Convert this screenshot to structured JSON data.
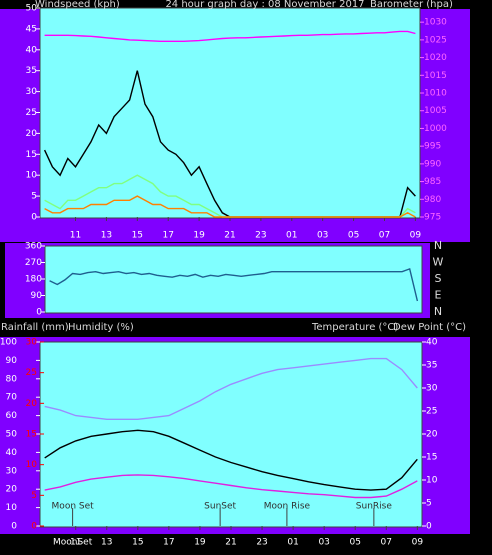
{
  "chart_data": [
    {
      "type": "line",
      "title": "24 hour graph day : 08 November 2017",
      "y_label": "Windspeed (kph)",
      "y2_label": "Barometer (hpa)",
      "x": [
        9,
        9.5,
        10,
        10.5,
        11,
        11.5,
        12,
        12.5,
        13,
        13.5,
        14,
        14.5,
        15,
        15.5,
        16,
        16.5,
        17,
        17.5,
        18,
        18.5,
        19,
        19.5,
        20,
        20.5,
        21,
        21.5,
        22,
        22.5,
        23,
        23.5,
        24,
        24.5,
        25,
        25.5,
        26,
        26.5,
        27,
        27.5,
        28,
        28.5,
        29,
        29.5,
        30,
        30.5,
        31,
        31.5,
        32,
        32.5,
        33
      ],
      "xlim": [
        8.7,
        33.3
      ],
      "xticks": [
        11,
        13,
        15,
        17,
        19,
        21,
        23,
        {
          "value": 25,
          "label": "01"
        },
        {
          "value": 27,
          "label": "03"
        },
        {
          "value": 29,
          "label": "05"
        },
        {
          "value": 31,
          "label": "07"
        },
        {
          "value": 33,
          "label": "09"
        }
      ],
      "ylim": [
        0,
        50
      ],
      "yticks": [
        0,
        5,
        10,
        15,
        20,
        25,
        30,
        35,
        40,
        45,
        50
      ],
      "ytick_color": "#ffffff",
      "y2lim": [
        975,
        1034
      ],
      "y2ticks": [
        975,
        980,
        985,
        990,
        995,
        1000,
        1005,
        1010,
        1015,
        1020,
        1025,
        1030
      ],
      "y2tick_color": "#ff66ff",
      "series": [
        {
          "color": "#000000",
          "axis": "y",
          "values": [
            16,
            12,
            10,
            14,
            12,
            15,
            18,
            22,
            20,
            24,
            26,
            28,
            35,
            27,
            24,
            18,
            16,
            15,
            13,
            10,
            12,
            8,
            4,
            1,
            0,
            0,
            0,
            0,
            0,
            0,
            0,
            0,
            0,
            0,
            0,
            0,
            0,
            0,
            0,
            0,
            0,
            0,
            0,
            0,
            0,
            0,
            0,
            7,
            5
          ]
        },
        {
          "color": "#80ff80",
          "axis": "y",
          "values": [
            4,
            3,
            2,
            4,
            4,
            5,
            6,
            7,
            7,
            8,
            8,
            9,
            10,
            9,
            8,
            6,
            5,
            5,
            4,
            3,
            3,
            2,
            1,
            0,
            0,
            0,
            0,
            0,
            0,
            0,
            0,
            0,
            0,
            0,
            0,
            0,
            0,
            0,
            0,
            0,
            0,
            0,
            0,
            0,
            0,
            0,
            0,
            2,
            1
          ]
        },
        {
          "color": "#ff8000",
          "axis": "y",
          "values": [
            2,
            1,
            1,
            2,
            2,
            2,
            3,
            3,
            3,
            4,
            4,
            4,
            5,
            4,
            3,
            3,
            2,
            2,
            2,
            1,
            1,
            1,
            0,
            0,
            0,
            0,
            0,
            0,
            0,
            0,
            0,
            0,
            0,
            0,
            0,
            0,
            0,
            0,
            0,
            0,
            0,
            0,
            0,
            0,
            0,
            0,
            0,
            1,
            0
          ]
        },
        {
          "color": "#ff00ff",
          "axis": "y2",
          "values": [
            1026.3,
            1026.3,
            1026.3,
            1026.3,
            1026.2,
            1026.1,
            1026,
            1025.8,
            1025.6,
            1025.4,
            1025.2,
            1025,
            1024.9,
            1024.8,
            1024.7,
            1024.6,
            1024.6,
            1024.6,
            1024.6,
            1024.7,
            1024.8,
            1025,
            1025.2,
            1025.4,
            1025.5,
            1025.6,
            1025.6,
            1025.7,
            1025.8,
            1025.9,
            1026,
            1026.1,
            1026.2,
            1026.3,
            1026.3,
            1026.4,
            1026.5,
            1026.5,
            1026.6,
            1026.7,
            1026.7,
            1026.8,
            1026.9,
            1027,
            1027,
            1027.2,
            1027.4,
            1027.4,
            1026.8
          ]
        }
      ]
    },
    {
      "type": "line",
      "x": [
        9,
        9.5,
        10,
        10.5,
        11,
        11.5,
        12,
        12.5,
        13,
        13.5,
        14,
        14.5,
        15,
        15.5,
        16,
        16.5,
        17,
        17.5,
        18,
        18.5,
        19,
        19.5,
        20,
        20.5,
        21,
        21.5,
        22,
        22.5,
        23,
        23.5,
        24,
        24.5,
        25,
        25.5,
        26,
        26.5,
        27,
        27.5,
        28,
        28.5,
        29,
        29.5,
        30,
        30.5,
        31,
        31.5,
        32,
        32.5,
        33
      ],
      "xlim": [
        8.7,
        33.3
      ],
      "ylim": [
        0,
        360
      ],
      "yticks": [
        0,
        90,
        180,
        270,
        360
      ],
      "ytick_color": "#ffffff",
      "compass_labels": [
        "N",
        "W",
        "S",
        "E",
        "N"
      ],
      "series": [
        {
          "color": "#1f5f8f",
          "axis": "y",
          "values": [
            170,
            150,
            175,
            210,
            205,
            215,
            220,
            210,
            215,
            220,
            210,
            215,
            205,
            210,
            200,
            195,
            190,
            200,
            195,
            205,
            190,
            200,
            195,
            205,
            200,
            195,
            200,
            205,
            210,
            220,
            220,
            220,
            220,
            220,
            220,
            220,
            220,
            220,
            220,
            220,
            220,
            220,
            220,
            220,
            220,
            220,
            220,
            235,
            60
          ]
        }
      ]
    },
    {
      "type": "line",
      "y_label": "Humidity (%)",
      "rainfall_label": "Rainfall (mm)",
      "y2_label": "Temperature (°C)",
      "dew_label": "Dew Point (°C)",
      "x": [
        9,
        10,
        11,
        12,
        13,
        14,
        15,
        16,
        17,
        18,
        19,
        20,
        21,
        22,
        23,
        24,
        25,
        26,
        27,
        28,
        29,
        30,
        31,
        32,
        33
      ],
      "xlim": [
        8.7,
        33.3
      ],
      "xticks": [
        11,
        13,
        15,
        17,
        19,
        21,
        23,
        {
          "value": 25,
          "label": "01"
        },
        {
          "value": 27,
          "label": "03"
        },
        {
          "value": 29,
          "label": "05"
        },
        {
          "value": 31,
          "label": "07"
        },
        {
          "value": 33,
          "label": "09"
        }
      ],
      "ylim": [
        0,
        100
      ],
      "yticks": [
        0,
        10,
        20,
        30,
        40,
        50,
        60,
        70,
        80,
        90,
        100
      ],
      "ytick_color": "#ffffff",
      "rainfall_ylim": [
        0,
        30
      ],
      "rainfall_yticks": [
        0,
        5,
        10,
        15,
        20,
        25,
        30
      ],
      "rainfall_tick_color": "#ff0000",
      "y2lim": [
        0,
        40
      ],
      "y2ticks": [
        0,
        5,
        10,
        15,
        20,
        25,
        30,
        35,
        40
      ],
      "y2tick_color": "#ffffff",
      "annotations": [
        {
          "label": "Moon Set",
          "x": 10.8
        },
        {
          "label": "SunSet",
          "x": 20.3
        },
        {
          "label": "Moon Rise",
          "x": 24.6
        },
        {
          "label": "SunRise",
          "x": 30.2
        }
      ],
      "axis_event": {
        "label": "MoonSet",
        "x": 10.8
      },
      "series": [
        {
          "color": "#9a8cff",
          "axis": "y",
          "values": [
            65,
            63,
            60,
            59,
            58,
            58,
            58,
            59,
            60,
            64,
            68,
            73,
            77,
            80,
            83,
            85,
            86,
            87,
            88,
            89,
            90,
            91,
            91,
            85,
            75
          ]
        },
        {
          "color": "#000000",
          "axis": "y2",
          "values": [
            14.8,
            17,
            18.5,
            19.5,
            20,
            20.5,
            20.8,
            20.5,
            19.5,
            18,
            16.5,
            15,
            13.8,
            12.8,
            11.8,
            11,
            10.3,
            9.6,
            9,
            8.5,
            8,
            7.8,
            8,
            10.5,
            14.5
          ]
        },
        {
          "color": "#e020e0",
          "axis": "y2",
          "values": [
            7.8,
            8.5,
            9.5,
            10.2,
            10.6,
            11,
            11.1,
            11,
            10.7,
            10.3,
            9.8,
            9.3,
            8.8,
            8.3,
            7.9,
            7.6,
            7.3,
            7,
            6.8,
            6.5,
            6.2,
            6.2,
            6.5,
            8,
            9.8
          ]
        }
      ]
    }
  ]
}
